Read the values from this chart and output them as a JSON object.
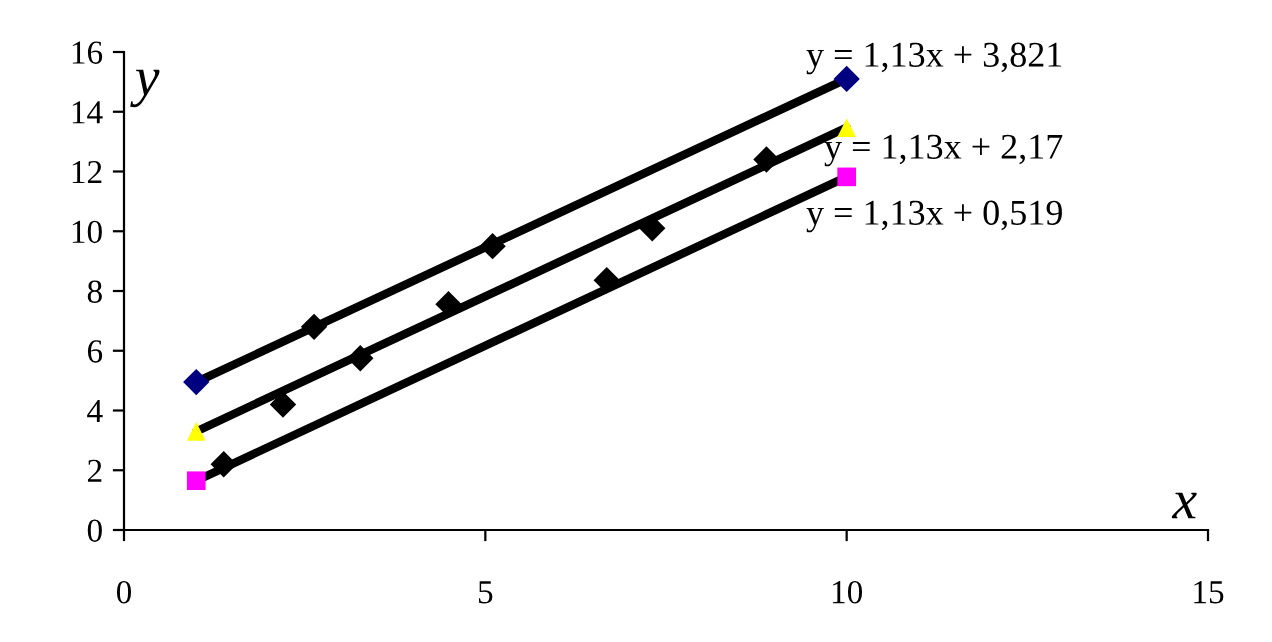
{
  "chart_data": {
    "type": "scatter",
    "xlabel": "x",
    "ylabel": "y",
    "xlim": [
      0,
      15
    ],
    "ylim": [
      0,
      16
    ],
    "xticks": [
      0,
      5,
      10,
      15
    ],
    "yticks": [
      0,
      2,
      4,
      6,
      8,
      10,
      12,
      14,
      16
    ],
    "grid": false,
    "legend": false,
    "series": [
      {
        "type": "line",
        "x": [
          1,
          10
        ],
        "values": [
          4.95,
          15.1
        ],
        "color": "#000000",
        "marker": "none"
      },
      {
        "type": "line",
        "x": [
          1,
          10
        ],
        "values": [
          3.3,
          13.47
        ],
        "color": "#000000",
        "marker": "none"
      },
      {
        "type": "line",
        "x": [
          1,
          10
        ],
        "values": [
          1.65,
          11.82
        ],
        "color": "#000000",
        "marker": "none"
      },
      {
        "x": [
          2.63,
          5.1,
          2.2,
          3.27,
          4.49,
          7.31,
          8.89,
          1.38,
          6.68
        ],
        "values": [
          6.8,
          9.5,
          4.2,
          5.75,
          7.56,
          10.1,
          12.4,
          2.2,
          8.36
        ],
        "color": "#000000",
        "marker": "diamond"
      },
      {
        "x": [
          1,
          10
        ],
        "values": [
          4.95,
          15.1
        ],
        "color": "#000080",
        "marker": "diamond"
      },
      {
        "x": [
          1,
          10
        ],
        "values": [
          3.3,
          13.47
        ],
        "color": "#ffff00",
        "marker": "triangle"
      },
      {
        "x": [
          1,
          10
        ],
        "values": [
          1.65,
          11.82
        ],
        "color": "#ff00ff",
        "marker": "square"
      }
    ],
    "annotations": [
      "y = 1,13x + 3,821",
      "y = 1,13x + 2,17",
      "y = 1,13x + 0,519"
    ]
  }
}
